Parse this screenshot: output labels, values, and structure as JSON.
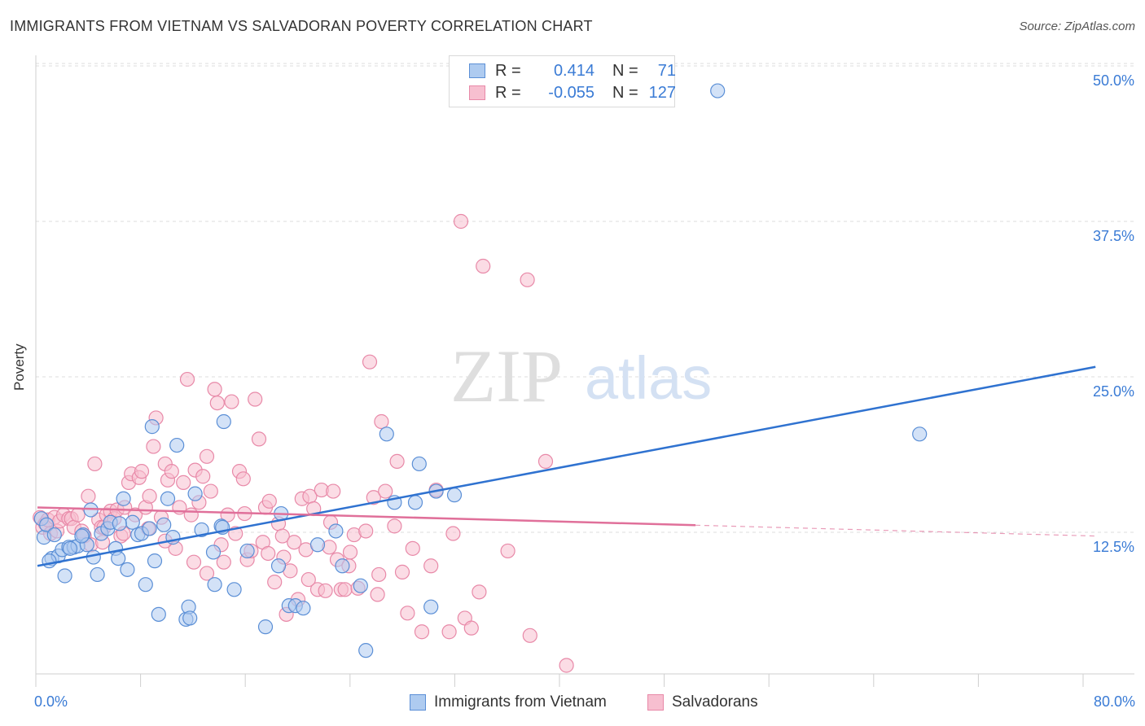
{
  "title": "IMMIGRANTS FROM VIETNAM VS SALVADORAN POVERTY CORRELATION CHART",
  "source": "Source: ZipAtlas.com",
  "watermark": {
    "zip": "ZIP",
    "atlas": "atlas"
  },
  "legend": {
    "series1": {
      "r_label": "R =",
      "r_value": "0.414",
      "n_label": "N =",
      "n_value": "71"
    },
    "series2": {
      "r_label": "R =",
      "r_value": "-0.055",
      "n_label": "N =",
      "n_value": "127"
    }
  },
  "colors": {
    "blue_fill": "#aecbf0",
    "blue_stroke": "#5b8fd6",
    "blue_line": "#2f72d0",
    "pink_fill": "#f7bfd0",
    "pink_stroke": "#e889a8",
    "pink_line": "#e0709a",
    "grid": "#dcdcdc",
    "tick_text": "#3a7bd5"
  },
  "chart_data": {
    "type": "scatter",
    "title": "IMMIGRANTS FROM VIETNAM VS SALVADORAN POVERTY CORRELATION CHART",
    "xlabel": "",
    "ylabel": "Poverty",
    "xlim": [
      0,
      80
    ],
    "ylim": [
      0,
      52
    ],
    "x_tick_labels": {
      "min": "0.0%",
      "max": "80.0%"
    },
    "y_ticks": [
      {
        "value": 12.5,
        "label": "12.5%"
      },
      {
        "value": 25.0,
        "label": "25.0%"
      },
      {
        "value": 37.5,
        "label": "37.5%"
      },
      {
        "value": 50.0,
        "label": "50.0%"
      }
    ],
    "series": [
      {
        "name": "Immigrants from Vietnam",
        "color": "blue",
        "trendline": {
          "x": [
            0.0,
            81.2
          ],
          "y": [
            9.8,
            25.8
          ],
          "dashed_from": null
        },
        "points": [
          [
            0.3,
            13.6
          ],
          [
            0.5,
            12.1
          ],
          [
            0.7,
            13.1
          ],
          [
            1.1,
            10.4
          ],
          [
            1.3,
            12.3
          ],
          [
            1.6,
            10.6
          ],
          [
            1.9,
            11.1
          ],
          [
            2.1,
            9.0
          ],
          [
            2.4,
            11.3
          ],
          [
            2.8,
            11.3
          ],
          [
            3.1,
            11.4
          ],
          [
            3.5,
            12.3
          ],
          [
            3.8,
            11.5
          ],
          [
            4.1,
            14.3
          ],
          [
            4.3,
            10.5
          ],
          [
            4.6,
            9.1
          ],
          [
            4.9,
            12.4
          ],
          [
            5.4,
            12.8
          ],
          [
            5.6,
            13.3
          ],
          [
            6.0,
            11.2
          ],
          [
            6.2,
            10.4
          ],
          [
            6.6,
            15.2
          ],
          [
            6.9,
            9.5
          ],
          [
            7.3,
            13.3
          ],
          [
            7.7,
            12.3
          ],
          [
            8.0,
            12.4
          ],
          [
            8.3,
            8.3
          ],
          [
            8.6,
            12.8
          ],
          [
            8.8,
            21.0
          ],
          [
            9.0,
            10.2
          ],
          [
            9.3,
            5.9
          ],
          [
            9.7,
            13.1
          ],
          [
            10.0,
            15.2
          ],
          [
            10.4,
            12.1
          ],
          [
            10.7,
            19.5
          ],
          [
            11.4,
            5.5
          ],
          [
            11.6,
            6.5
          ],
          [
            11.7,
            5.6
          ],
          [
            12.1,
            15.6
          ],
          [
            12.6,
            12.7
          ],
          [
            13.5,
            10.9
          ],
          [
            13.6,
            8.3
          ],
          [
            14.1,
            13.0
          ],
          [
            14.2,
            12.9
          ],
          [
            14.3,
            21.4
          ],
          [
            15.1,
            7.9
          ],
          [
            16.1,
            11.0
          ],
          [
            17.5,
            4.9
          ],
          [
            18.5,
            9.8
          ],
          [
            18.7,
            14.0
          ],
          [
            19.3,
            6.6
          ],
          [
            19.8,
            6.6
          ],
          [
            20.4,
            6.4
          ],
          [
            21.5,
            11.5
          ],
          [
            22.9,
            12.6
          ],
          [
            23.4,
            9.8
          ],
          [
            24.8,
            8.2
          ],
          [
            25.2,
            3.0
          ],
          [
            26.8,
            20.4
          ],
          [
            27.4,
            14.9
          ],
          [
            29.0,
            14.9
          ],
          [
            29.3,
            18.0
          ],
          [
            30.2,
            6.5
          ],
          [
            30.6,
            15.8
          ],
          [
            32.0,
            15.5
          ],
          [
            52.2,
            48.0
          ],
          [
            67.7,
            20.4
          ],
          [
            2.5,
            11.2
          ],
          [
            0.9,
            10.2
          ],
          [
            6.3,
            13.2
          ],
          [
            3.4,
            12.2
          ]
        ]
      },
      {
        "name": "Salvadorans",
        "color": "pink",
        "trendline": {
          "x": [
            0.0,
            81.2
          ],
          "y": [
            14.5,
            12.2
          ],
          "dashed_from": 50.5
        },
        "points": [
          [
            0.2,
            13.7
          ],
          [
            0.4,
            12.9
          ],
          [
            0.6,
            13.2
          ],
          [
            0.8,
            13.5
          ],
          [
            1.0,
            12.4
          ],
          [
            1.3,
            13.7
          ],
          [
            1.5,
            12.6
          ],
          [
            1.7,
            13.4
          ],
          [
            2.0,
            13.9
          ],
          [
            2.4,
            13.6
          ],
          [
            2.6,
            13.6
          ],
          [
            2.8,
            12.9
          ],
          [
            3.1,
            13.9
          ],
          [
            3.4,
            12.6
          ],
          [
            3.6,
            12.2
          ],
          [
            3.9,
            15.4
          ],
          [
            4.1,
            11.5
          ],
          [
            4.4,
            18.0
          ],
          [
            4.7,
            13.5
          ],
          [
            4.9,
            12.9
          ],
          [
            5.1,
            12.9
          ],
          [
            5.3,
            13.9
          ],
          [
            5.6,
            14.2
          ],
          [
            5.9,
            13.6
          ],
          [
            6.1,
            14.3
          ],
          [
            6.4,
            12.2
          ],
          [
            6.7,
            14.5
          ],
          [
            7.0,
            16.5
          ],
          [
            7.2,
            17.2
          ],
          [
            7.5,
            13.9
          ],
          [
            7.8,
            16.9
          ],
          [
            8.0,
            17.4
          ],
          [
            8.3,
            14.5
          ],
          [
            8.6,
            15.4
          ],
          [
            8.9,
            19.4
          ],
          [
            9.1,
            21.7
          ],
          [
            9.5,
            13.7
          ],
          [
            9.8,
            18.0
          ],
          [
            10.0,
            16.7
          ],
          [
            10.3,
            17.4
          ],
          [
            10.6,
            11.2
          ],
          [
            10.9,
            14.5
          ],
          [
            11.2,
            16.5
          ],
          [
            11.5,
            24.8
          ],
          [
            11.8,
            13.9
          ],
          [
            12.1,
            17.5
          ],
          [
            12.4,
            14.9
          ],
          [
            12.7,
            17.0
          ],
          [
            13.0,
            18.6
          ],
          [
            13.3,
            15.8
          ],
          [
            13.6,
            24.0
          ],
          [
            13.8,
            22.9
          ],
          [
            14.1,
            11.5
          ],
          [
            14.3,
            10.1
          ],
          [
            14.6,
            13.9
          ],
          [
            14.9,
            23.0
          ],
          [
            15.2,
            12.4
          ],
          [
            15.5,
            17.4
          ],
          [
            15.8,
            16.8
          ],
          [
            16.1,
            10.3
          ],
          [
            16.4,
            11.0
          ],
          [
            16.7,
            23.2
          ],
          [
            17.0,
            20.0
          ],
          [
            17.3,
            11.7
          ],
          [
            17.5,
            14.5
          ],
          [
            17.8,
            15.0
          ],
          [
            18.2,
            8.5
          ],
          [
            18.5,
            13.2
          ],
          [
            18.8,
            12.2
          ],
          [
            19.1,
            5.9
          ],
          [
            19.4,
            9.4
          ],
          [
            19.7,
            11.7
          ],
          [
            20.0,
            7.1
          ],
          [
            20.3,
            15.2
          ],
          [
            20.6,
            11.1
          ],
          [
            20.9,
            15.4
          ],
          [
            21.2,
            14.4
          ],
          [
            21.5,
            7.9
          ],
          [
            21.8,
            15.9
          ],
          [
            22.1,
            7.8
          ],
          [
            22.4,
            11.3
          ],
          [
            22.7,
            15.8
          ],
          [
            23.0,
            10.3
          ],
          [
            23.3,
            7.9
          ],
          [
            23.6,
            7.9
          ],
          [
            23.9,
            9.8
          ],
          [
            24.3,
            12.3
          ],
          [
            24.6,
            8.0
          ],
          [
            25.2,
            12.6
          ],
          [
            25.5,
            26.2
          ],
          [
            25.8,
            15.3
          ],
          [
            26.1,
            7.5
          ],
          [
            26.4,
            21.4
          ],
          [
            26.7,
            15.8
          ],
          [
            27.4,
            13.0
          ],
          [
            27.6,
            18.2
          ],
          [
            28.0,
            9.3
          ],
          [
            28.4,
            6.0
          ],
          [
            29.5,
            4.5
          ],
          [
            30.2,
            9.8
          ],
          [
            30.6,
            15.9
          ],
          [
            31.6,
            4.5
          ],
          [
            31.9,
            12.4
          ],
          [
            32.8,
            5.6
          ],
          [
            33.3,
            4.8
          ],
          [
            33.9,
            7.7
          ],
          [
            32.5,
            37.5
          ],
          [
            34.2,
            33.9
          ],
          [
            36.1,
            11.0
          ],
          [
            37.6,
            32.8
          ],
          [
            37.8,
            4.2
          ],
          [
            39.0,
            18.2
          ],
          [
            40.6,
            1.8
          ],
          [
            8.5,
            12.8
          ],
          [
            9.8,
            11.8
          ],
          [
            12.0,
            10.1
          ],
          [
            13.0,
            9.2
          ],
          [
            15.9,
            14.0
          ],
          [
            17.7,
            10.8
          ],
          [
            18.9,
            10.5
          ],
          [
            20.8,
            8.7
          ],
          [
            22.5,
            13.3
          ],
          [
            24.0,
            10.9
          ],
          [
            26.2,
            9.1
          ],
          [
            28.8,
            11.2
          ],
          [
            6.6,
            12.4
          ],
          [
            5.0,
            11.7
          ]
        ]
      }
    ]
  },
  "bottom_legend": {
    "item1": "Immigrants from Vietnam",
    "item2": "Salvadorans"
  }
}
